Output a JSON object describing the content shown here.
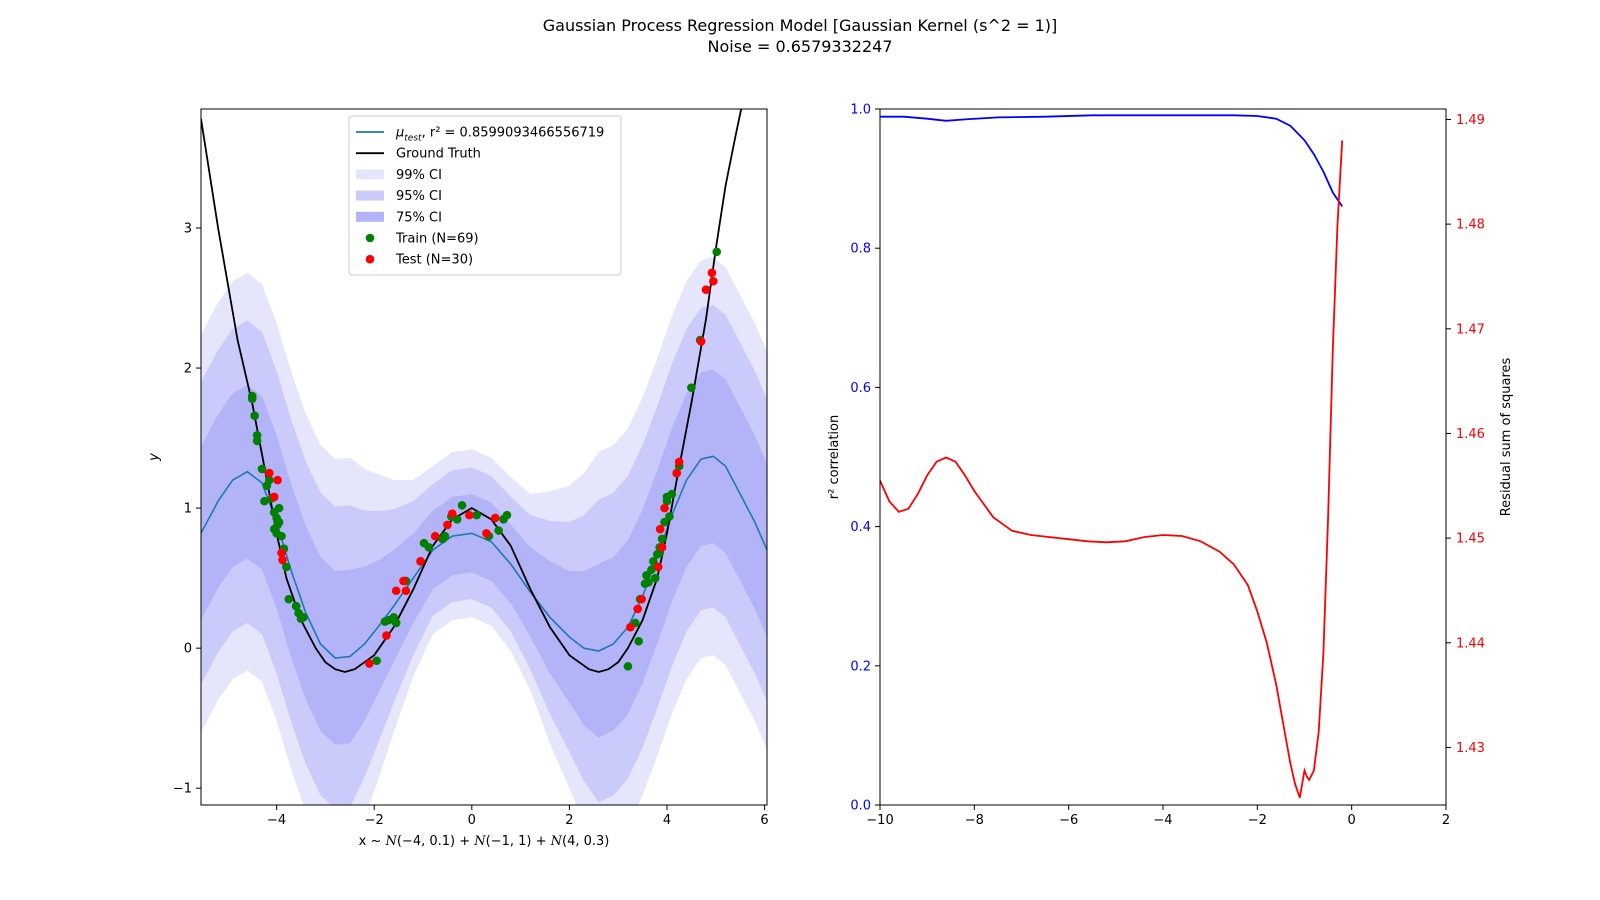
{
  "figure": {
    "title_line1": "Gaussian Process Regression Model [Gaussian Kernel (s^2 = 1)]",
    "title_line2": "Noise = 0.6579332247"
  },
  "chart_data": [
    {
      "type": "line",
      "panel": "left",
      "ylabel": "y",
      "xlabel_parts": [
        "x ~ ",
        "N",
        "(−4, 0.1) + ",
        "N",
        "(−1, 1) + ",
        "N",
        "(4, 0.3)"
      ],
      "xlim": [
        -5.55,
        6.05
      ],
      "ylim": [
        -1.12,
        3.85
      ],
      "xticks": [
        -4,
        -2,
        0,
        2,
        4,
        6
      ],
      "xtick_labels": [
        "−4",
        "−2",
        "0",
        "2",
        "4",
        "6"
      ],
      "yticks": [
        -1,
        0,
        1,
        2,
        3
      ],
      "ytick_labels": [
        "−1",
        "0",
        "1",
        "2",
        "3"
      ],
      "grid": false,
      "legend_placement": "upper center",
      "legend": [
        {
          "key": "mu",
          "label_prefix": "μ",
          "label_sub": "test",
          "label_suffix": ", r² = 0.8599093466556719",
          "kind": "line",
          "color": "#1f77b4"
        },
        {
          "key": "truth",
          "label": "Ground Truth",
          "kind": "line",
          "color": "#000000"
        },
        {
          "key": "ci99",
          "label": "99% CI",
          "kind": "patch",
          "color": "#e5e5fc"
        },
        {
          "key": "ci95",
          "label": "95% CI",
          "kind": "patch",
          "color": "#cacafb"
        },
        {
          "key": "ci75",
          "label": "75% CI",
          "kind": "patch",
          "color": "#b3b3f8"
        },
        {
          "key": "train",
          "label": "Train (N=69)",
          "kind": "marker",
          "color": "#008000"
        },
        {
          "key": "test",
          "label": "Test (N=30)",
          "kind": "marker",
          "color": "#ff0000"
        }
      ],
      "series": [
        {
          "name": "Ground Truth",
          "color": "#000000",
          "x": [
            -5.55,
            -5.2,
            -4.8,
            -4.5,
            -4.2,
            -4.0,
            -3.8,
            -3.5,
            -3.2,
            -3.0,
            -2.8,
            -2.6,
            -2.4,
            -2.2,
            -2.0,
            -1.6,
            -1.2,
            -0.8,
            -0.4,
            0.0,
            0.4,
            0.8,
            1.2,
            1.6,
            2.0,
            2.2,
            2.4,
            2.6,
            2.8,
            3.0,
            3.2,
            3.5,
            3.8,
            4.0,
            4.2,
            4.5,
            4.8,
            5.0,
            5.2,
            5.4,
            5.6
          ],
          "y": [
            3.78,
            3.0,
            2.2,
            1.75,
            1.2,
            0.82,
            0.5,
            0.2,
            0.0,
            -0.1,
            -0.15,
            -0.17,
            -0.15,
            -0.1,
            -0.05,
            0.15,
            0.42,
            0.73,
            0.92,
            1.0,
            0.92,
            0.73,
            0.42,
            0.15,
            -0.05,
            -0.1,
            -0.15,
            -0.17,
            -0.15,
            -0.1,
            0.0,
            0.2,
            0.5,
            0.82,
            1.2,
            1.75,
            2.35,
            2.85,
            3.3,
            3.65,
            3.98
          ]
        },
        {
          "name": "μ_test",
          "color": "#1f77b4",
          "x": [
            -5.55,
            -5.2,
            -4.9,
            -4.6,
            -4.3,
            -4.0,
            -3.7,
            -3.4,
            -3.1,
            -2.8,
            -2.5,
            -2.2,
            -1.9,
            -1.6,
            -1.2,
            -0.8,
            -0.4,
            0.0,
            0.4,
            0.8,
            1.2,
            1.6,
            2.0,
            2.3,
            2.6,
            2.9,
            3.2,
            3.5,
            3.8,
            4.1,
            4.4,
            4.7,
            4.95,
            5.2,
            5.5,
            5.8,
            6.05
          ],
          "y": [
            0.82,
            1.05,
            1.2,
            1.26,
            1.18,
            0.9,
            0.55,
            0.25,
            0.03,
            -0.07,
            -0.06,
            0.03,
            0.16,
            0.3,
            0.5,
            0.7,
            0.8,
            0.82,
            0.76,
            0.6,
            0.4,
            0.22,
            0.08,
            0.0,
            -0.02,
            0.03,
            0.15,
            0.37,
            0.65,
            0.95,
            1.2,
            1.35,
            1.37,
            1.3,
            1.1,
            0.9,
            0.7
          ]
        }
      ],
      "bands": [
        {
          "name": "99% CI",
          "color": "#e5e5fc",
          "halfwidth": [
            1.42,
            1.42,
            1.42,
            1.42,
            1.42,
            1.42,
            1.42,
            1.42,
            1.42,
            1.42,
            1.42,
            1.25,
            1.08,
            0.9,
            0.7,
            0.6,
            0.6,
            0.6,
            0.6,
            0.62,
            0.7,
            0.9,
            1.08,
            1.25,
            1.42,
            1.42,
            1.42,
            1.42,
            1.42,
            1.42,
            1.42,
            1.42,
            1.42,
            1.42,
            1.42,
            1.42,
            1.42
          ]
        },
        {
          "name": "95% CI",
          "color": "#cacafb",
          "halfwidth": [
            1.08,
            1.08,
            1.08,
            1.08,
            1.08,
            1.08,
            1.08,
            1.08,
            1.08,
            1.08,
            1.08,
            0.95,
            0.82,
            0.69,
            0.55,
            0.47,
            0.47,
            0.47,
            0.47,
            0.48,
            0.55,
            0.69,
            0.82,
            0.95,
            1.08,
            1.08,
            1.08,
            1.08,
            1.08,
            1.08,
            1.08,
            1.08,
            1.08,
            1.08,
            1.08,
            1.08,
            1.08
          ]
        },
        {
          "name": "75% CI",
          "color": "#b3b3f8",
          "halfwidth": [
            0.62,
            0.62,
            0.62,
            0.62,
            0.62,
            0.62,
            0.62,
            0.62,
            0.62,
            0.62,
            0.62,
            0.55,
            0.47,
            0.4,
            0.32,
            0.28,
            0.28,
            0.28,
            0.28,
            0.28,
            0.32,
            0.4,
            0.47,
            0.55,
            0.62,
            0.62,
            0.62,
            0.62,
            0.62,
            0.62,
            0.62,
            0.62,
            0.62,
            0.62,
            0.62,
            0.62,
            0.62
          ]
        }
      ],
      "train_points": {
        "name": "Train (N=69)",
        "color": "#008000",
        "x": [
          -4.5,
          -4.45,
          -4.5,
          -4.4,
          -4.4,
          -4.3,
          -4.2,
          -4.25,
          -4.1,
          -4.05,
          -4.0,
          -3.95,
          -4.05,
          -3.9,
          -3.98,
          -3.85,
          -3.8,
          -3.75,
          -3.6,
          -3.55,
          -3.5,
          -3.45,
          -1.95,
          -1.78,
          -1.6,
          -1.55,
          -1.35,
          -0.98,
          -0.88,
          -0.55,
          -0.42,
          -0.3,
          -0.2,
          0.35,
          0.55,
          0.65,
          0.72,
          3.2,
          3.35,
          3.42,
          3.45,
          3.55,
          3.62,
          3.68,
          3.72,
          3.76,
          3.8,
          3.85,
          3.9,
          3.95,
          4.0,
          4.05,
          4.1,
          4.25,
          4.5,
          4.68,
          5.02,
          -4.15,
          -4.0,
          -3.95,
          -3.6,
          -1.7,
          -1.05,
          -0.6,
          3.58,
          3.85,
          4.0,
          4.2,
          0.1
        ],
        "y": [
          1.78,
          1.66,
          1.8,
          1.52,
          1.48,
          1.28,
          1.16,
          1.05,
          1.07,
          0.97,
          0.93,
          1.0,
          0.85,
          0.8,
          0.88,
          0.71,
          0.58,
          0.35,
          0.3,
          0.25,
          0.21,
          0.22,
          -0.09,
          0.19,
          0.22,
          0.18,
          0.48,
          0.75,
          0.72,
          0.8,
          0.94,
          0.92,
          1.02,
          0.8,
          0.84,
          0.92,
          0.95,
          -0.13,
          0.18,
          0.05,
          0.35,
          0.46,
          0.47,
          0.56,
          0.62,
          0.5,
          0.67,
          0.68,
          0.78,
          0.9,
          1.08,
          0.94,
          1.1,
          1.3,
          1.86,
          2.2,
          2.83,
          1.2,
          0.82,
          0.9,
          0.3,
          0.2,
          0.62,
          0.78,
          0.52,
          0.72,
          1.05,
          1.25,
          0.95
        ]
      },
      "test_points": {
        "name": "Test (N=30)",
        "color": "#ff0000",
        "x": [
          -4.15,
          -4.05,
          -3.98,
          -3.9,
          -3.88,
          -2.1,
          -1.75,
          -1.55,
          -1.4,
          -1.35,
          -1.05,
          -0.75,
          -0.5,
          -0.4,
          -0.05,
          0.3,
          0.48,
          3.25,
          3.4,
          3.48,
          3.82,
          3.86,
          3.9,
          3.95,
          4.2,
          4.25,
          4.7,
          4.8,
          4.92,
          4.95
        ],
        "y": [
          1.25,
          1.08,
          1.2,
          0.68,
          0.63,
          -0.11,
          0.09,
          0.41,
          0.48,
          0.41,
          0.62,
          0.8,
          0.88,
          0.96,
          0.95,
          0.82,
          0.93,
          0.15,
          0.28,
          0.35,
          0.58,
          0.85,
          0.72,
          1.0,
          1.25,
          1.33,
          2.19,
          2.56,
          2.68,
          2.62
        ]
      }
    },
    {
      "type": "line",
      "panel": "right",
      "ylabel_left": "r² correlation",
      "ylabel_right": "Residual sum of squares",
      "xlim": [
        -10,
        2
      ],
      "ylim_left": [
        0.0,
        1.0
      ],
      "ylim_right": [
        1.4245,
        1.491
      ],
      "xticks": [
        -10,
        -8,
        -6,
        -4,
        -2,
        0,
        2
      ],
      "xtick_labels": [
        "−10",
        "−8",
        "−6",
        "−4",
        "−2",
        "0",
        "2"
      ],
      "yticks_left": [
        0.0,
        0.2,
        0.4,
        0.6,
        0.8,
        1.0
      ],
      "ytick_labels_left": [
        "0.0",
        "0.2",
        "0.4",
        "0.6",
        "0.8",
        "1.0"
      ],
      "yticks_right": [
        1.43,
        1.44,
        1.45,
        1.46,
        1.47,
        1.48,
        1.49
      ],
      "ytick_labels_right": [
        "1.43",
        "1.44",
        "1.45",
        "1.46",
        "1.47",
        "1.48",
        "1.49"
      ],
      "grid": false,
      "left_axis_color": "#0000ff",
      "right_axis_color": "#ff0000",
      "series": [
        {
          "name": "r² correlation",
          "axis": "left",
          "color": "#0000ff",
          "x": [
            -10,
            -9.5,
            -9.0,
            -8.6,
            -8.2,
            -7.5,
            -6.5,
            -5.5,
            -4.5,
            -3.5,
            -2.5,
            -2.0,
            -1.6,
            -1.3,
            -1.0,
            -0.8,
            -0.6,
            -0.4,
            -0.25,
            -0.2
          ],
          "y": [
            0.989,
            0.989,
            0.986,
            0.983,
            0.985,
            0.988,
            0.989,
            0.991,
            0.991,
            0.991,
            0.991,
            0.99,
            0.986,
            0.976,
            0.955,
            0.935,
            0.91,
            0.88,
            0.865,
            0.86
          ]
        },
        {
          "name": "Residual sum of squares",
          "axis": "right",
          "color": "#ff0000",
          "x": [
            -10,
            -9.8,
            -9.6,
            -9.4,
            -9.2,
            -9.0,
            -8.8,
            -8.6,
            -8.4,
            -8.2,
            -8.0,
            -7.6,
            -7.2,
            -6.8,
            -6.4,
            -6.0,
            -5.6,
            -5.2,
            -4.8,
            -4.4,
            -4.0,
            -3.6,
            -3.2,
            -2.8,
            -2.5,
            -2.2,
            -2.0,
            -1.8,
            -1.6,
            -1.5,
            -1.4,
            -1.3,
            -1.2,
            -1.1,
            -1.0,
            -0.95,
            -0.9,
            -0.8,
            -0.7,
            -0.6,
            -0.5,
            -0.4,
            -0.3,
            -0.2
          ],
          "y": [
            1.4555,
            1.4535,
            1.4525,
            1.4528,
            1.4542,
            1.456,
            1.4573,
            1.4577,
            1.4573,
            1.456,
            1.4545,
            1.452,
            1.4507,
            1.4503,
            1.4501,
            1.4499,
            1.4497,
            1.4496,
            1.4497,
            1.4501,
            1.4503,
            1.4502,
            1.4497,
            1.4487,
            1.4475,
            1.4455,
            1.443,
            1.44,
            1.436,
            1.4335,
            1.431,
            1.4285,
            1.4265,
            1.4252,
            1.4278,
            1.4272,
            1.4269,
            1.4278,
            1.4315,
            1.439,
            1.452,
            1.468,
            1.48,
            1.488
          ]
        }
      ]
    }
  ]
}
